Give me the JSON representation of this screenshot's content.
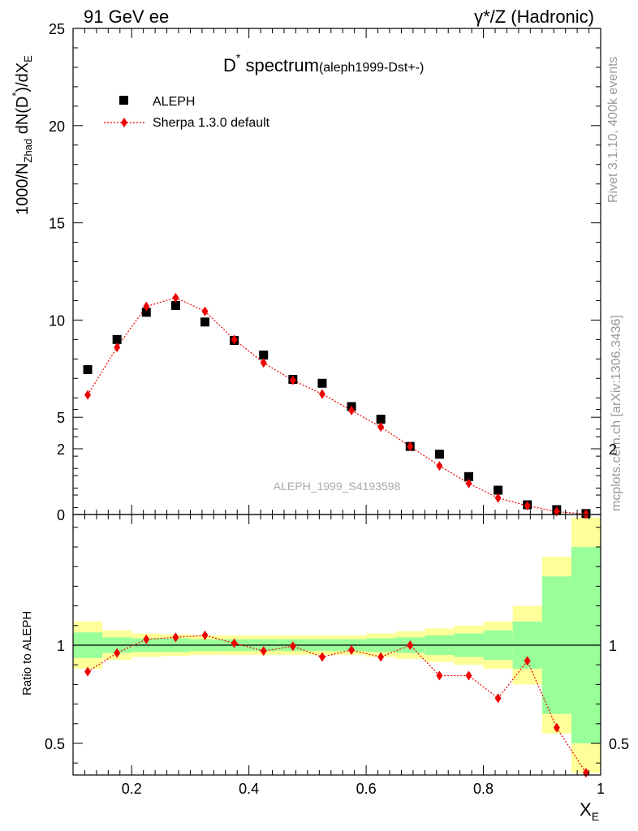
{
  "header": {
    "left": "91 GeV ee",
    "right": "γ*/Z (Hadronic)"
  },
  "title": {
    "main": "D",
    "sup": "*",
    "main2": " spectrum",
    "sub": "(aleph1999-Dst+-)"
  },
  "ylabel": {
    "p1": "1000/N",
    "sub1": "Zhad",
    "p2": " dN(D",
    "sup": "*",
    "p3": ")/dX",
    "sub2": "E"
  },
  "ratio_ylabel": "Ratio to ALEPH",
  "xlabel": {
    "main": "X",
    "sub": "E"
  },
  "side_texts": {
    "rivet": "Rivet 3.1.10,  400k events",
    "mcplots": "mcplots.cern.ch [arXiv:1306.3436]"
  },
  "watermark": "ALEPH_1999_S4193598",
  "colors": {
    "data": "#000000",
    "mc": "#ee0000",
    "band_inner": "#99ff99",
    "band_outer": "#ffff99"
  },
  "chart_data": [
    {
      "type": "scatter",
      "panel": "main",
      "xlim": [
        0.1,
        1.0
      ],
      "ylim": [
        0,
        25
      ],
      "x_ticks": [
        "0.2",
        "0.4",
        "0.6",
        "0.8",
        "1"
      ],
      "y_ticks": [
        "0",
        "5",
        "10",
        "15",
        "20",
        "25"
      ],
      "x": [
        0.125,
        0.175,
        0.225,
        0.275,
        0.325,
        0.375,
        0.425,
        0.475,
        0.525,
        0.575,
        0.625,
        0.675,
        0.725,
        0.775,
        0.825,
        0.875,
        0.925,
        0.975
      ],
      "legend": [
        "ALEPH",
        "Sherpa 1.3.0 default"
      ],
      "legend_position": "top-left",
      "series": [
        {
          "name": "ALEPH",
          "marker": "square",
          "values": [
            7.45,
            9.0,
            10.4,
            10.75,
            9.9,
            8.95,
            8.2,
            6.95,
            6.75,
            5.55,
            4.9,
            3.5,
            3.1,
            1.95,
            1.25,
            0.5,
            0.25,
            0.05
          ]
        },
        {
          "name": "Sherpa 1.3.0 default",
          "marker": "diamond",
          "line": "dotted",
          "values": [
            6.15,
            8.6,
            10.7,
            11.15,
            10.45,
            9.0,
            7.8,
            6.9,
            6.2,
            5.35,
            4.5,
            3.5,
            2.5,
            1.6,
            0.85,
            0.45,
            0.15,
            0.02
          ]
        }
      ]
    },
    {
      "type": "scatter",
      "panel": "ratio",
      "ylabel": "Ratio to ALEPH",
      "xlim": [
        0.1,
        1.0
      ],
      "ylim": [
        0.35,
        2.25
      ],
      "x_ticks": [
        "0.2",
        "0.4",
        "0.6",
        "0.8",
        "1"
      ],
      "y_ticks": [
        "0.5",
        "1",
        "2"
      ],
      "x": [
        0.125,
        0.175,
        0.225,
        0.275,
        0.325,
        0.375,
        0.425,
        0.475,
        0.525,
        0.575,
        0.625,
        0.675,
        0.725,
        0.775,
        0.825,
        0.875,
        0.925,
        0.975
      ],
      "bin_edges": [
        0.1,
        0.15,
        0.2,
        0.25,
        0.3,
        0.35,
        0.4,
        0.45,
        0.5,
        0.55,
        0.6,
        0.65,
        0.7,
        0.75,
        0.8,
        0.85,
        0.9,
        0.95,
        1.0
      ],
      "series": [
        {
          "name": "Sherpa 1.3.0 default",
          "values": [
            0.865,
            0.96,
            1.03,
            1.04,
            1.05,
            1.01,
            0.97,
            0.995,
            0.94,
            0.975,
            0.94,
            1.0,
            0.845,
            0.845,
            0.73,
            0.92,
            0.58,
            0.35
          ]
        }
      ],
      "band_inner_halfwidth": [
        0.065,
        0.04,
        0.035,
        0.035,
        0.03,
        0.03,
        0.03,
        0.03,
        0.03,
        0.03,
        0.035,
        0.04,
        0.05,
        0.06,
        0.075,
        0.12,
        0.35,
        0.5
      ],
      "band_outer_halfwidth": [
        0.12,
        0.075,
        0.06,
        0.055,
        0.05,
        0.05,
        0.05,
        0.05,
        0.05,
        0.05,
        0.06,
        0.07,
        0.085,
        0.1,
        0.12,
        0.2,
        0.45,
        0.65
      ],
      "reference_line": 1
    }
  ]
}
